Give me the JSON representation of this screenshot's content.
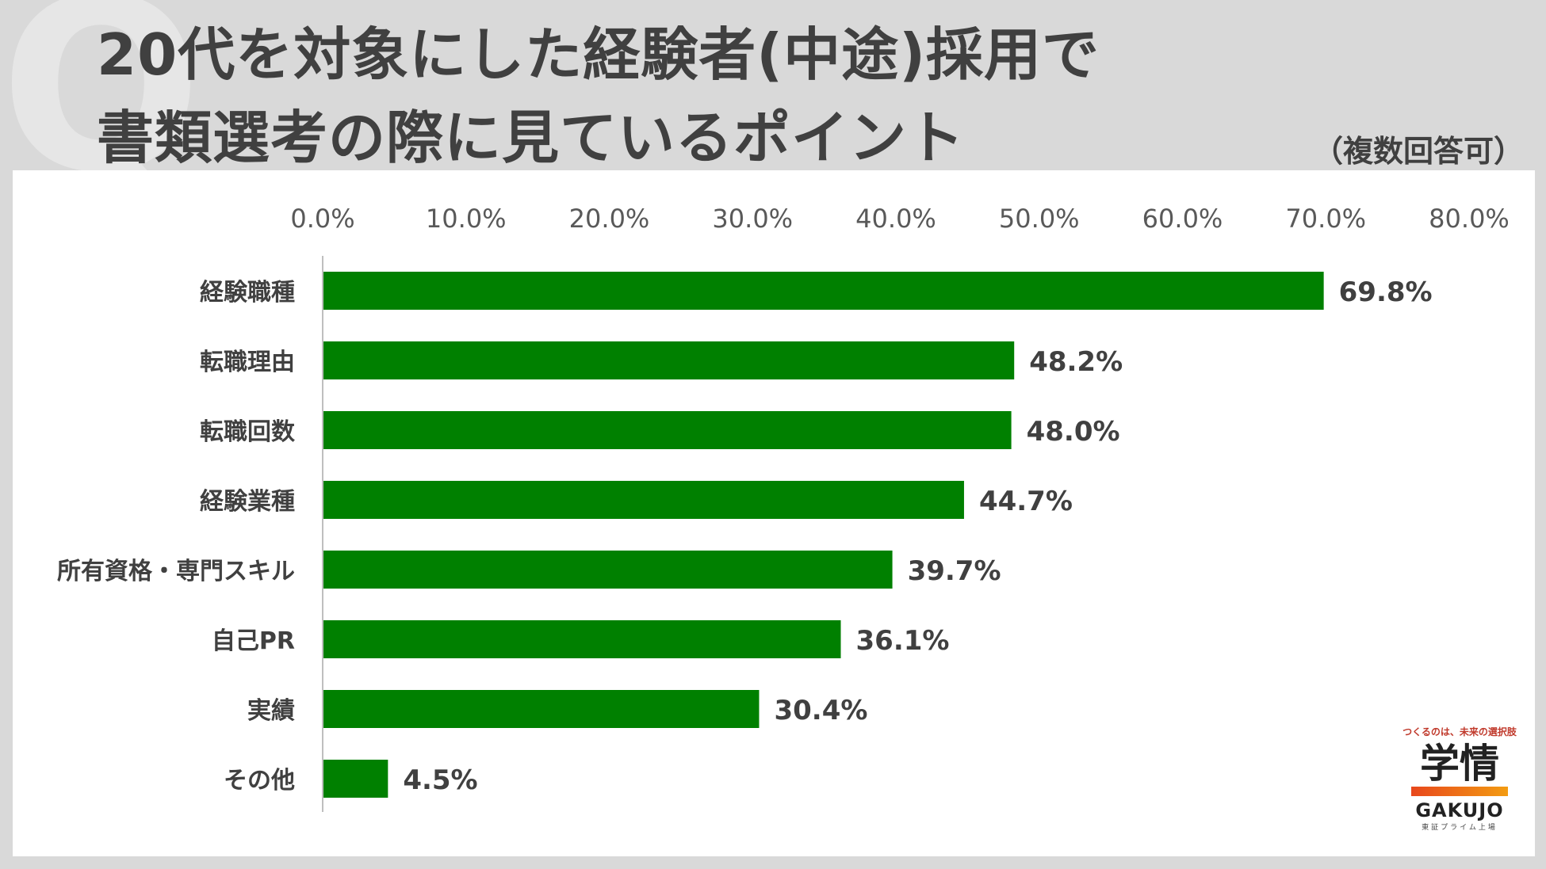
{
  "header": {
    "q_mark": "Q",
    "title_line1": "20代を対象にした経験者(中途)採用で",
    "title_line2": "書類選考の際に見ているポイント",
    "note": "（複数回答可）"
  },
  "chart_data": {
    "type": "bar",
    "orientation": "horizontal",
    "categories": [
      "経験職種",
      "転職理由",
      "転職回数",
      "経験業種",
      "所有資格・専門スキル",
      "自己PR",
      "実績",
      "その他"
    ],
    "values": [
      69.8,
      48.2,
      48.0,
      44.7,
      39.7,
      36.1,
      30.4,
      4.5
    ],
    "value_labels": [
      "69.8%",
      "48.2%",
      "48.0%",
      "44.7%",
      "39.7%",
      "36.1%",
      "30.4%",
      "4.5%"
    ],
    "xlim": [
      0,
      80
    ],
    "ticks": [
      0,
      10,
      20,
      30,
      40,
      50,
      60,
      70,
      80
    ],
    "tick_labels": [
      "0.0%",
      "10.0%",
      "20.0%",
      "30.0%",
      "40.0%",
      "50.0%",
      "60.0%",
      "70.0%",
      "80.0%"
    ],
    "axis_position": "top",
    "grid": false,
    "bar_color": "#008000"
  },
  "logo": {
    "tagline": "つくるのは、未来の選択肢",
    "kanji": "学情",
    "name": "GAKUJO",
    "sub": "東証プライム上場"
  }
}
